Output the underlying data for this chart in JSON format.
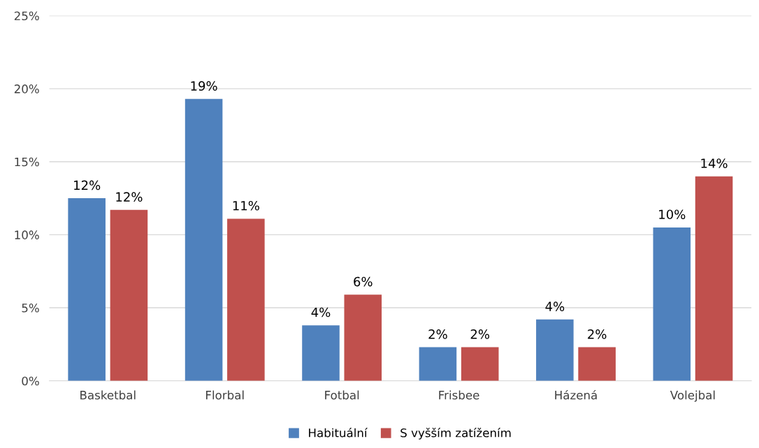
{
  "chart_data": {
    "type": "bar",
    "categories": [
      "Basketbal",
      "Florbal",
      "Fotbal",
      "Frisbee",
      "Házená",
      "Volejbal"
    ],
    "series": [
      {
        "name": "Habituální",
        "color": "#4f81bd",
        "values": [
          12.5,
          19.3,
          3.8,
          2.3,
          4.2,
          10.5
        ],
        "value_labels": [
          "12%",
          "19%",
          "4%",
          "2%",
          "4%",
          "10%"
        ]
      },
      {
        "name": "S vyšším zatížením",
        "color": "#c0504d",
        "values": [
          11.7,
          11.1,
          5.9,
          2.3,
          2.3,
          14.0
        ],
        "value_labels": [
          "12%",
          "11%",
          "6%",
          "2%",
          "2%",
          "14%"
        ]
      }
    ],
    "ylim": [
      0,
      25
    ],
    "yticks": [
      {
        "value": 0,
        "label": "0%"
      },
      {
        "value": 5,
        "label": "5%"
      },
      {
        "value": 10,
        "label": "10%"
      },
      {
        "value": 15,
        "label": "15%"
      },
      {
        "value": 20,
        "label": "20%"
      },
      {
        "value": 25,
        "label": "25%"
      }
    ],
    "grid": "y",
    "legend": "bottom"
  }
}
